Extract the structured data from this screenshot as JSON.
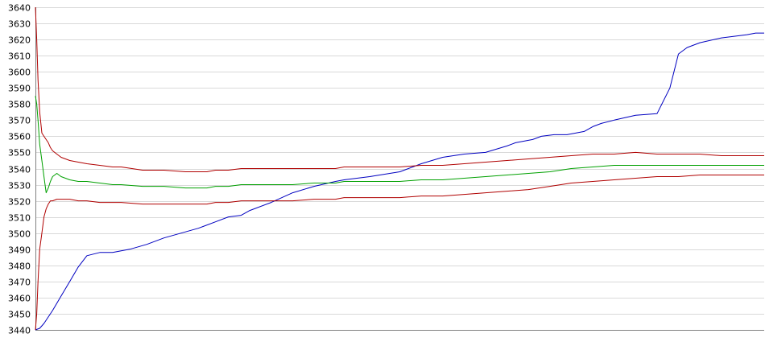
{
  "chart_data": {
    "type": "line",
    "title": "",
    "xlabel": "",
    "ylabel": "",
    "ylim": [
      3440,
      3640
    ],
    "yticks": [
      3640,
      3630,
      3620,
      3610,
      3600,
      3590,
      3580,
      3570,
      3560,
      3550,
      3540,
      3530,
      3520,
      3510,
      3500,
      3490,
      3480,
      3470,
      3460,
      3450,
      3440
    ],
    "grid": true,
    "legend": "none",
    "series": [
      {
        "color": "#0000c0",
        "x": [
          0,
          1,
          2,
          4,
          6,
          8,
          10,
          12,
          15,
          18,
          22,
          26,
          30,
          34,
          38,
          42,
          45,
          48,
          50,
          55,
          60,
          65,
          70,
          72,
          78,
          85,
          90,
          95,
          100,
          105,
          110,
          112,
          116,
          118,
          121,
          124,
          126,
          128,
          130,
          132,
          135,
          140,
          145,
          148,
          150,
          152,
          155,
          160,
          166,
          168,
          170
        ],
        "y": [
          3440,
          3441,
          3444,
          3452,
          3461,
          3470,
          3479,
          3486,
          3488,
          3488,
          3490,
          3493,
          3497,
          3500,
          3503,
          3507,
          3510,
          3511,
          3514,
          3519,
          3525,
          3529,
          3532,
          3533,
          3535,
          3538,
          3543,
          3547,
          3549,
          3550,
          3554,
          3556,
          3558,
          3560,
          3561,
          3561,
          3562,
          3563,
          3566,
          3568,
          3570,
          3573,
          3574,
          3590,
          3611,
          3615,
          3618,
          3621,
          3623,
          3624,
          3624
        ]
      },
      {
        "color": "#00a000",
        "x": [
          0,
          0.3,
          0.6,
          1,
          1.5,
          2,
          2.5,
          3,
          3.5,
          4,
          5,
          6,
          7,
          8,
          10,
          12,
          15,
          18,
          20,
          25,
          30,
          35,
          40,
          42,
          45,
          48,
          50,
          55,
          60,
          65,
          70,
          72,
          75,
          80,
          85,
          90,
          95,
          100,
          105,
          110,
          115,
          120,
          125,
          130,
          135,
          140,
          145,
          150,
          155,
          160,
          165,
          170
        ],
        "y": [
          3585,
          3580,
          3570,
          3555,
          3545,
          3535,
          3525,
          3528,
          3532,
          3535,
          3537,
          3535,
          3534,
          3533,
          3532,
          3532,
          3531,
          3530,
          3530,
          3529,
          3529,
          3528,
          3528,
          3529,
          3529,
          3530,
          3530,
          3530,
          3530,
          3531,
          3531,
          3532,
          3532,
          3532,
          3532,
          3533,
          3533,
          3534,
          3535,
          3536,
          3537,
          3538,
          3540,
          3541,
          3542,
          3542,
          3542,
          3542,
          3542,
          3542,
          3542,
          3542
        ]
      },
      {
        "color": "#b00000",
        "x": [
          0,
          0.3,
          0.6,
          1,
          1.5,
          2,
          2.5,
          3,
          3.5,
          4,
          5,
          6,
          7,
          8,
          10,
          12,
          15,
          18,
          20,
          25,
          30,
          35,
          40,
          42,
          45,
          48,
          50,
          55,
          60,
          65,
          70,
          72,
          75,
          80,
          85,
          90,
          95,
          100,
          105,
          110,
          115,
          120,
          125,
          130,
          135,
          140,
          145,
          150,
          155,
          160,
          165,
          170
        ],
        "y": [
          3640,
          3620,
          3595,
          3575,
          3562,
          3560,
          3558,
          3556,
          3553,
          3551,
          3549,
          3547,
          3546,
          3545,
          3544,
          3543,
          3542,
          3541,
          3541,
          3539,
          3539,
          3538,
          3538,
          3539,
          3539,
          3540,
          3540,
          3540,
          3540,
          3540,
          3540,
          3541,
          3541,
          3541,
          3541,
          3542,
          3542,
          3543,
          3544,
          3545,
          3546,
          3547,
          3548,
          3549,
          3549,
          3550,
          3549,
          3549,
          3549,
          3548,
          3548,
          3548
        ]
      },
      {
        "color": "#b00000",
        "x": [
          0,
          0.3,
          0.6,
          1,
          1.5,
          2,
          2.5,
          3,
          3.5,
          4,
          5,
          6,
          7,
          8,
          10,
          12,
          15,
          18,
          20,
          25,
          30,
          35,
          40,
          42,
          45,
          48,
          50,
          55,
          60,
          65,
          70,
          72,
          75,
          80,
          85,
          90,
          95,
          100,
          105,
          110,
          115,
          120,
          125,
          130,
          135,
          140,
          145,
          150,
          155,
          160,
          165,
          170
        ],
        "y": [
          3440,
          3450,
          3470,
          3490,
          3500,
          3510,
          3515,
          3518,
          3520,
          3520,
          3521,
          3521,
          3521,
          3521,
          3520,
          3520,
          3519,
          3519,
          3519,
          3518,
          3518,
          3518,
          3518,
          3519,
          3519,
          3520,
          3520,
          3520,
          3520,
          3521,
          3521,
          3522,
          3522,
          3522,
          3522,
          3523,
          3523,
          3524,
          3525,
          3526,
          3527,
          3529,
          3531,
          3532,
          3533,
          3534,
          3535,
          3535,
          3536,
          3536,
          3536,
          3536
        ]
      }
    ]
  }
}
